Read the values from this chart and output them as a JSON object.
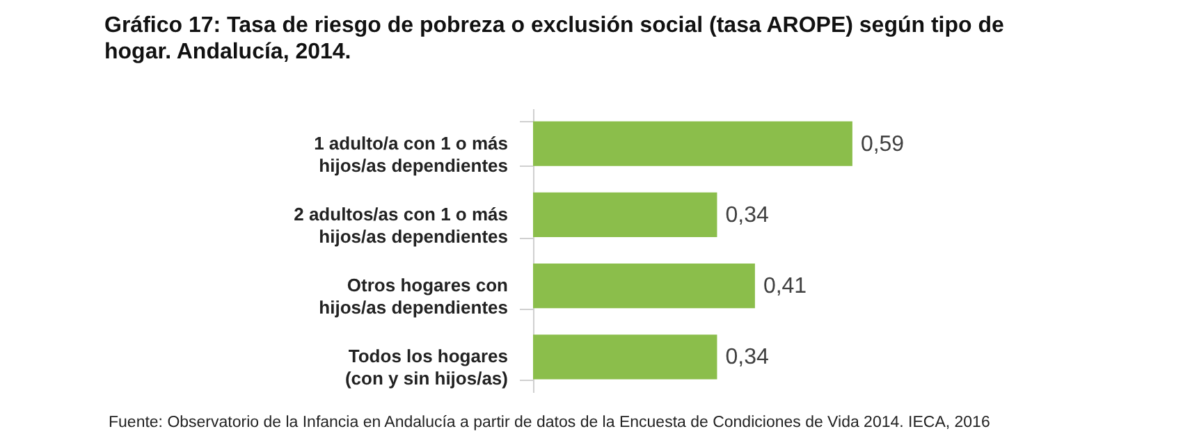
{
  "chart_data": {
    "type": "bar",
    "orientation": "horizontal",
    "title": "Gráfico 17: Tasa de riesgo de pobreza o exclusión social (tasa AROPE) según tipo de\nhogar. Andalucía, 2014.",
    "categories": [
      "1 adulto/a con  1 o más\nhijos/as dependientes",
      "2 adultos/as con 1 o más\nhijos/as dependientes",
      "Otros hogares con\nhijos/as dependientes",
      "Todos los hogares\n(con y sin hijos/as)"
    ],
    "values": [
      0.59,
      0.34,
      0.41,
      0.34
    ],
    "value_labels": [
      "0,59",
      "0,34",
      "0,41",
      "0,34"
    ],
    "color": "#8bbe4b",
    "grid": false,
    "annotations": [
      "Fuente: Observatorio de la Infancia en Andalucía a partir de datos de la Encuesta de Condiciones de Vida 2014. IECA, 2016"
    ]
  }
}
